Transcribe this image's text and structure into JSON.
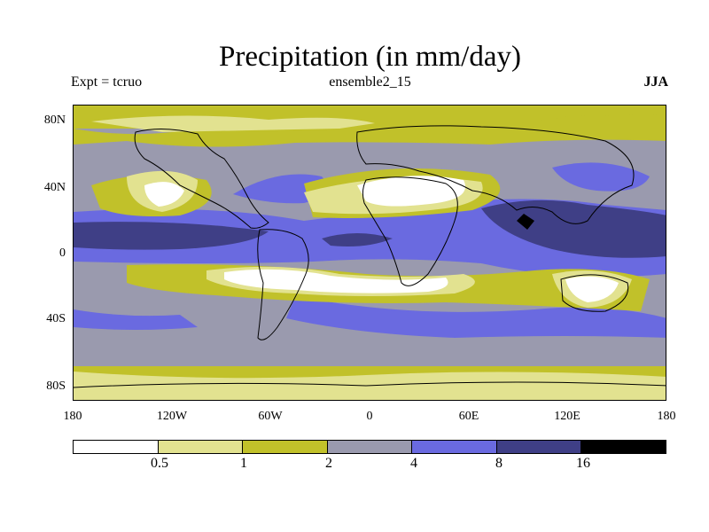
{
  "title": "Precipitation (in mm/day)",
  "experiment": "Expt = tcruo",
  "ensemble": "ensemble2_15",
  "season": "JJA",
  "axes": {
    "latitude_labels": [
      "80N",
      "40N",
      "0",
      "40S",
      "80S"
    ],
    "longitude_labels": [
      "180",
      "120W",
      "60W",
      "0",
      "60E",
      "120E",
      "180"
    ]
  },
  "colorbar": {
    "levels": [
      "0.5",
      "1",
      "2",
      "4",
      "8",
      "16"
    ],
    "colors": [
      "#ffffff",
      "#e2e290",
      "#c1c12a",
      "#9a9aae",
      "#6a6ae0",
      "#3f3f86",
      "#000000"
    ]
  }
}
